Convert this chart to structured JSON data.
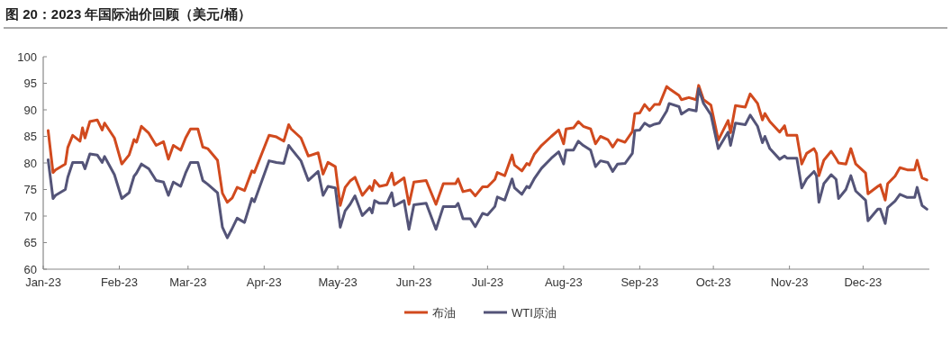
{
  "chart_data": {
    "type": "line",
    "title": "图 20：2023 年国际油价回顾（美元/桶）",
    "x": [
      "2023-01-03",
      "2023-01-05",
      "2023-01-06",
      "2023-01-10",
      "2023-01-11",
      "2023-01-13",
      "2023-01-16",
      "2023-01-17",
      "2023-01-18",
      "2023-01-20",
      "2023-01-23",
      "2023-01-25",
      "2023-01-26",
      "2023-01-30",
      "2023-02-02",
      "2023-02-05",
      "2023-02-07",
      "2023-02-08",
      "2023-02-10",
      "2023-02-13",
      "2023-02-16",
      "2023-02-19",
      "2023-02-21",
      "2023-02-23",
      "2023-02-26",
      "2023-02-28",
      "2023-03-02",
      "2023-03-05",
      "2023-03-07",
      "2023-03-09",
      "2023-03-13",
      "2023-03-15",
      "2023-03-17",
      "2023-03-19",
      "2023-03-21",
      "2023-03-24",
      "2023-03-27",
      "2023-03-28",
      "2023-04-03",
      "2023-04-06",
      "2023-04-09",
      "2023-04-11",
      "2023-04-12",
      "2023-04-16",
      "2023-04-19",
      "2023-04-23",
      "2023-04-25",
      "2023-04-27",
      "2023-04-30",
      "2023-05-02",
      "2023-05-04",
      "2023-05-06",
      "2023-05-08",
      "2023-05-11",
      "2023-05-14",
      "2023-05-15",
      "2023-05-16",
      "2023-05-18",
      "2023-05-21",
      "2023-05-23",
      "2023-05-24",
      "2023-05-28",
      "2023-05-30",
      "2023-06-01",
      "2023-06-06",
      "2023-06-10",
      "2023-06-13",
      "2023-06-18",
      "2023-06-19",
      "2023-06-21",
      "2023-06-24",
      "2023-06-26",
      "2023-06-29",
      "2023-07-01",
      "2023-07-04",
      "2023-07-05",
      "2023-07-08",
      "2023-07-11",
      "2023-07-12",
      "2023-07-15",
      "2023-07-17",
      "2023-07-18",
      "2023-07-20",
      "2023-07-23",
      "2023-07-27",
      "2023-07-30",
      "2023-08-01",
      "2023-08-02",
      "2023-08-05",
      "2023-08-07",
      "2023-08-09",
      "2023-08-12",
      "2023-08-14",
      "2023-08-16",
      "2023-08-19",
      "2023-08-21",
      "2023-08-23",
      "2023-08-26",
      "2023-08-29",
      "2023-08-30",
      "2023-09-01",
      "2023-09-03",
      "2023-09-05",
      "2023-09-07",
      "2023-09-09",
      "2023-09-12",
      "2023-09-13",
      "2023-09-17",
      "2023-09-18",
      "2023-09-21",
      "2023-09-24",
      "2023-09-25",
      "2023-09-27",
      "2023-09-30",
      "2023-10-03",
      "2023-10-07",
      "2023-10-08",
      "2023-10-10",
      "2023-10-14",
      "2023-10-16",
      "2023-10-19",
      "2023-10-21",
      "2023-10-22",
      "2023-10-24",
      "2023-10-28",
      "2023-10-30",
      "2023-10-31",
      "2023-11-04",
      "2023-11-06",
      "2023-11-08",
      "2023-11-11",
      "2023-11-12",
      "2023-11-13",
      "2023-11-15",
      "2023-11-18",
      "2023-11-20",
      "2023-11-21",
      "2023-11-24",
      "2023-11-26",
      "2023-11-28",
      "2023-12-02",
      "2023-12-03",
      "2023-12-07",
      "2023-12-08",
      "2023-12-10",
      "2023-12-11",
      "2023-12-14",
      "2023-12-16",
      "2023-12-19",
      "2023-12-22",
      "2023-12-23",
      "2023-12-25",
      "2023-12-27"
    ],
    "series": [
      {
        "name": "布油",
        "color": "#d14a1e",
        "values": [
          86.1,
          78.2,
          78.7,
          79.8,
          82.9,
          85.2,
          84.1,
          86.6,
          84.7,
          87.8,
          88.1,
          86.2,
          87.5,
          84.7,
          79.8,
          81.5,
          84.4,
          83.9,
          86.9,
          85.6,
          83.3,
          84.0,
          80.7,
          83.3,
          82.4,
          84.7,
          86.4,
          86.4,
          83.0,
          82.7,
          80.5,
          74.3,
          72.6,
          73.4,
          75.4,
          74.8,
          78.5,
          78.2,
          85.2,
          84.9,
          84.1,
          87.2,
          86.4,
          84.7,
          81.3,
          81.9,
          77.9,
          80.1,
          79.3,
          72.0,
          75.4,
          76.6,
          77.3,
          73.9,
          75.6,
          74.8,
          76.7,
          75.6,
          75.9,
          78.1,
          75.9,
          77.2,
          72.2,
          76.4,
          76.7,
          72.2,
          76.1,
          76.1,
          77.0,
          74.6,
          74.9,
          73.8,
          75.5,
          75.5,
          76.9,
          78.2,
          77.6,
          81.5,
          79.6,
          78.5,
          79.9,
          79.6,
          81.6,
          83.3,
          85.0,
          86.2,
          83.6,
          86.4,
          86.6,
          87.8,
          86.9,
          86.4,
          83.6,
          85.0,
          84.4,
          83.0,
          84.4,
          83.9,
          85.9,
          89.3,
          89.4,
          91.0,
          89.9,
          91.0,
          91.0,
          94.4,
          94.0,
          92.7,
          91.9,
          92.3,
          91.9,
          94.6,
          91.9,
          90.9,
          84.3,
          88.0,
          85.7,
          90.8,
          90.5,
          93.0,
          91.2,
          88.1,
          89.3,
          87.8,
          85.8,
          87.0,
          85.2,
          85.2,
          79.8,
          81.8,
          82.7,
          81.8,
          77.6,
          80.5,
          82.2,
          80.8,
          80.0,
          79.8,
          82.7,
          79.8,
          78.1,
          74.2,
          75.6,
          75.9,
          73.0,
          76.1,
          77.5,
          79.1,
          78.7,
          78.7,
          80.5,
          77.2,
          76.8
        ]
      },
      {
        "name": "WTI原油",
        "color": "#545478",
        "values": [
          80.6,
          73.3,
          73.9,
          75.0,
          77.3,
          80.1,
          80.1,
          80.1,
          78.9,
          81.7,
          81.5,
          80.1,
          81.2,
          77.8,
          73.3,
          74.4,
          77.5,
          78.1,
          79.8,
          78.9,
          76.7,
          76.4,
          73.9,
          76.4,
          75.6,
          78.1,
          80.1,
          80.1,
          76.7,
          76.0,
          74.4,
          67.9,
          65.9,
          67.7,
          69.6,
          68.8,
          73.3,
          72.7,
          80.4,
          80.1,
          79.9,
          83.3,
          82.7,
          80.4,
          76.7,
          78.4,
          73.9,
          75.6,
          75.3,
          67.9,
          71.0,
          72.2,
          73.8,
          70.1,
          71.5,
          70.6,
          72.9,
          72.4,
          72.4,
          74.4,
          71.9,
          72.9,
          67.5,
          72.1,
          72.4,
          67.5,
          71.8,
          71.8,
          72.4,
          69.5,
          69.5,
          68.0,
          70.5,
          70.2,
          71.8,
          73.6,
          73.0,
          77.0,
          75.3,
          74.1,
          75.6,
          75.3,
          77.0,
          79.0,
          80.9,
          82.1,
          79.8,
          82.4,
          82.4,
          84.1,
          83.3,
          82.4,
          79.3,
          80.4,
          80.1,
          78.4,
          79.8,
          79.9,
          81.8,
          86.1,
          86.2,
          87.5,
          86.9,
          87.3,
          87.5,
          89.8,
          91.2,
          90.6,
          89.2,
          90.1,
          89.8,
          94.0,
          91.2,
          89.1,
          82.7,
          85.8,
          83.3,
          87.5,
          87.2,
          89.0,
          86.9,
          83.8,
          85.0,
          82.7,
          80.7,
          81.3,
          80.9,
          80.9,
          75.3,
          77.0,
          78.4,
          77.6,
          72.6,
          76.1,
          77.8,
          76.9,
          73.3,
          75.0,
          77.6,
          74.7,
          73.0,
          69.1,
          71.3,
          71.3,
          68.6,
          71.6,
          72.8,
          74.1,
          73.5,
          73.5,
          75.4,
          72.0,
          71.3
        ]
      }
    ],
    "xlim": [
      "2023-01-01",
      "2023-12-28"
    ],
    "xticks": [
      {
        "value": "2023-01-01",
        "label": "Jan-23"
      },
      {
        "value": "2023-02-01",
        "label": "Feb-23"
      },
      {
        "value": "2023-03-01",
        "label": "Mar-23"
      },
      {
        "value": "2023-04-01",
        "label": "Apr-23"
      },
      {
        "value": "2023-05-01",
        "label": "May-23"
      },
      {
        "value": "2023-06-01",
        "label": "Jun-23"
      },
      {
        "value": "2023-07-01",
        "label": "Jul-23"
      },
      {
        "value": "2023-08-01",
        "label": "Aug-23"
      },
      {
        "value": "2023-09-01",
        "label": "Sep-23"
      },
      {
        "value": "2023-10-01",
        "label": "Oct-23"
      },
      {
        "value": "2023-11-01",
        "label": "Nov-23"
      },
      {
        "value": "2023-12-01",
        "label": "Dec-23"
      }
    ],
    "ylim": [
      60,
      100
    ],
    "yticks": [
      60,
      65,
      70,
      75,
      80,
      85,
      90,
      95,
      100
    ],
    "legend": "bottom"
  }
}
